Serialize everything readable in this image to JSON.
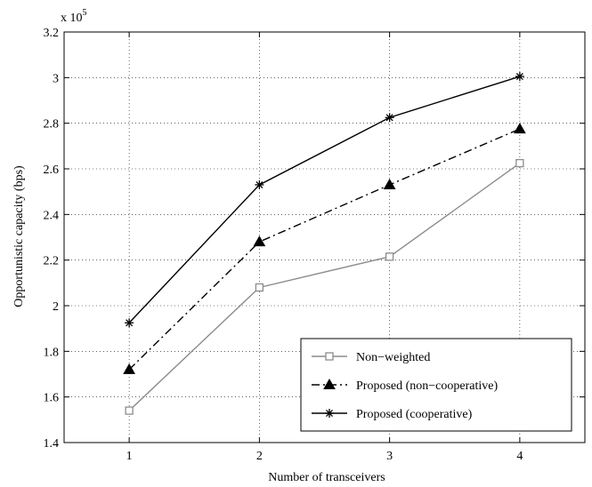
{
  "chart_data": {
    "type": "line",
    "xlabel": "Number of transceivers",
    "ylabel": "Opportunistic capacity (bps)",
    "y_multiplier_label": "x 10",
    "y_multiplier_exponent": "5",
    "x": [
      1,
      2,
      3,
      4
    ],
    "xlim": [
      0.5,
      4.5
    ],
    "ylim": [
      1.4,
      3.2
    ],
    "x_ticks": [
      "1",
      "2",
      "3",
      "4"
    ],
    "y_ticks": [
      "1.4",
      "1.6",
      "1.8",
      "2",
      "2.2",
      "2.4",
      "2.6",
      "2.8",
      "3",
      "3.2"
    ],
    "grid": true,
    "legend_position": "bottom-right",
    "series": [
      {
        "name": "Non−weighted",
        "values": [
          1.54,
          2.08,
          2.215,
          2.625
        ],
        "color": "#8c8c8c",
        "line_style": "solid",
        "marker": "square"
      },
      {
        "name": "Proposed (non−cooperative)",
        "values": [
          1.72,
          2.28,
          2.53,
          2.775
        ],
        "color": "#000000",
        "line_style": "dashdot",
        "marker": "triangle"
      },
      {
        "name": "Proposed (cooperative)",
        "values": [
          1.925,
          2.53,
          2.825,
          3.005
        ],
        "color": "#000000",
        "line_style": "solid",
        "marker": "star"
      }
    ]
  }
}
